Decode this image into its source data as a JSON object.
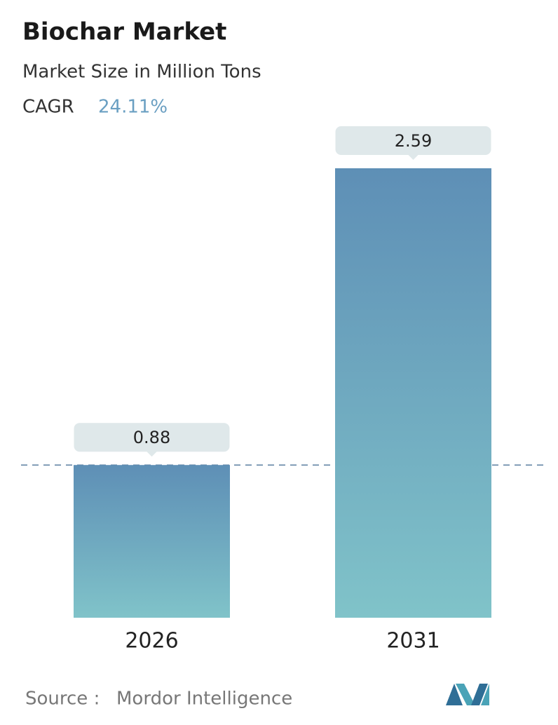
{
  "chart_data": {
    "type": "bar",
    "title": "Biochar Market",
    "subtitle": "Market Size in Million Tons",
    "cagr_label": "CAGR",
    "cagr_value": "24.11%",
    "categories": [
      "2026",
      "2031"
    ],
    "values": [
      0.88,
      2.59
    ],
    "color_top": "#5e8fb6",
    "color_bottom": "#80c3c9",
    "source_label": "Source :",
    "source": "Mordor Intelligence"
  }
}
